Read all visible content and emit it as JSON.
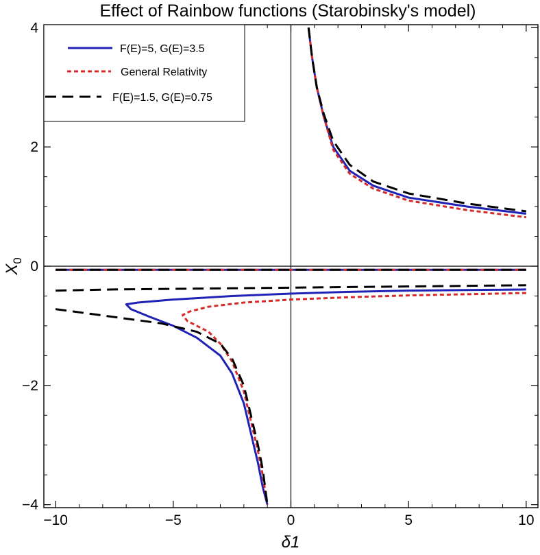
{
  "chart_data": {
    "type": "line",
    "title": "Effect of Rainbow functions (Starobinsky's model)",
    "xlabel": "δ1",
    "ylabel_base": "X",
    "ylabel_sub": "0",
    "xlim": [
      -10.5,
      10.5
    ],
    "ylim": [
      -4.05,
      4.05
    ],
    "x_ticks": [
      -10,
      -5,
      0,
      5,
      10
    ],
    "x_tick_labels": [
      "−10",
      "−5",
      "0",
      "5",
      "10"
    ],
    "y_ticks": [
      -4,
      -2,
      0,
      2,
      4
    ],
    "y_tick_labels": [
      "−4",
      "−2",
      "0",
      "2",
      "4"
    ],
    "grid": false,
    "legend_placement": "top-left",
    "series": [
      {
        "name": "F(E)=5, G(E)=3.5",
        "color": "#1f22b4",
        "dash": "solid",
        "segments": [
          [
            [
              0.75,
              4.0
            ],
            [
              0.9,
              3.5
            ],
            [
              1.1,
              3.0
            ],
            [
              1.4,
              2.5
            ],
            [
              1.8,
              2.0
            ],
            [
              2.5,
              1.6
            ],
            [
              3.5,
              1.35
            ],
            [
              5.0,
              1.15
            ],
            [
              7.5,
              1.0
            ],
            [
              10.0,
              0.88
            ]
          ],
          [
            [
              -10.0,
              -0.06
            ],
            [
              -5.0,
              -0.06
            ],
            [
              0.0,
              -0.06
            ],
            [
              5.0,
              -0.06
            ],
            [
              10.0,
              -0.06
            ]
          ],
          [
            [
              10.0,
              -0.39
            ],
            [
              7.5,
              -0.4
            ],
            [
              5.0,
              -0.41
            ],
            [
              2.5,
              -0.43
            ],
            [
              0.0,
              -0.46
            ],
            [
              -2.5,
              -0.5
            ],
            [
              -5.0,
              -0.56
            ],
            [
              -6.5,
              -0.61
            ],
            [
              -7.0,
              -0.64
            ],
            [
              -6.8,
              -0.72
            ],
            [
              -6.0,
              -0.85
            ],
            [
              -5.0,
              -1.0
            ],
            [
              -4.0,
              -1.2
            ],
            [
              -3.0,
              -1.5
            ],
            [
              -2.5,
              -1.8
            ],
            [
              -2.0,
              -2.3
            ],
            [
              -1.7,
              -2.8
            ],
            [
              -1.4,
              -3.3
            ],
            [
              -1.2,
              -3.7
            ],
            [
              -1.0,
              -4.0
            ]
          ]
        ]
      },
      {
        "name": "General Relativity",
        "color": "#d42a2a",
        "dash": "dotted",
        "segments": [
          [
            [
              0.75,
              4.0
            ],
            [
              0.9,
              3.5
            ],
            [
              1.1,
              3.0
            ],
            [
              1.4,
              2.5
            ],
            [
              1.8,
              1.95
            ],
            [
              2.5,
              1.55
            ],
            [
              3.5,
              1.3
            ],
            [
              5.0,
              1.1
            ],
            [
              7.5,
              0.94
            ],
            [
              10.0,
              0.82
            ]
          ],
          [
            [
              -10.0,
              -0.06
            ],
            [
              -5.0,
              -0.06
            ],
            [
              0.0,
              -0.06
            ],
            [
              5.0,
              -0.06
            ],
            [
              10.0,
              -0.06
            ]
          ],
          [
            [
              10.0,
              -0.45
            ],
            [
              7.5,
              -0.47
            ],
            [
              5.0,
              -0.49
            ],
            [
              2.5,
              -0.52
            ],
            [
              0.0,
              -0.56
            ],
            [
              -2.0,
              -0.61
            ],
            [
              -3.5,
              -0.68
            ],
            [
              -4.3,
              -0.76
            ],
            [
              -4.6,
              -0.82
            ],
            [
              -4.4,
              -0.92
            ],
            [
              -3.5,
              -1.1
            ],
            [
              -3.0,
              -1.3
            ],
            [
              -2.5,
              -1.6
            ],
            [
              -2.0,
              -2.1
            ],
            [
              -1.7,
              -2.6
            ],
            [
              -1.4,
              -3.1
            ],
            [
              -1.2,
              -3.5
            ],
            [
              -1.0,
              -4.0
            ]
          ]
        ]
      },
      {
        "name": "F(E)=1.5, G(E)=0.75",
        "color": "#000000",
        "dash": "dashed",
        "segments": [
          [
            [
              0.75,
              4.0
            ],
            [
              0.9,
              3.5
            ],
            [
              1.1,
              3.0
            ],
            [
              1.4,
              2.55
            ],
            [
              1.8,
              2.1
            ],
            [
              2.5,
              1.7
            ],
            [
              3.5,
              1.42
            ],
            [
              5.0,
              1.22
            ],
            [
              7.5,
              1.05
            ],
            [
              10.0,
              0.92
            ]
          ],
          [
            [
              -10.0,
              -0.06
            ],
            [
              -5.0,
              -0.06
            ],
            [
              0.0,
              -0.06
            ],
            [
              5.0,
              -0.06
            ],
            [
              10.0,
              -0.06
            ]
          ],
          [
            [
              -10.0,
              -0.41
            ],
            [
              -7.5,
              -0.39
            ],
            [
              -5.0,
              -0.38
            ],
            [
              -2.5,
              -0.37
            ],
            [
              0.0,
              -0.36
            ],
            [
              2.5,
              -0.35
            ],
            [
              5.0,
              -0.34
            ],
            [
              7.5,
              -0.33
            ],
            [
              10.0,
              -0.32
            ]
          ],
          [
            [
              -10.0,
              -0.72
            ],
            [
              -8.5,
              -0.8
            ],
            [
              -7.0,
              -0.88
            ],
            [
              -5.5,
              -0.96
            ],
            [
              -4.0,
              -1.1
            ],
            [
              -3.0,
              -1.3
            ],
            [
              -2.5,
              -1.55
            ],
            [
              -2.0,
              -2.0
            ],
            [
              -1.7,
              -2.5
            ],
            [
              -1.4,
              -3.0
            ],
            [
              -1.2,
              -3.4
            ],
            [
              -1.0,
              -4.0
            ]
          ]
        ]
      }
    ]
  }
}
